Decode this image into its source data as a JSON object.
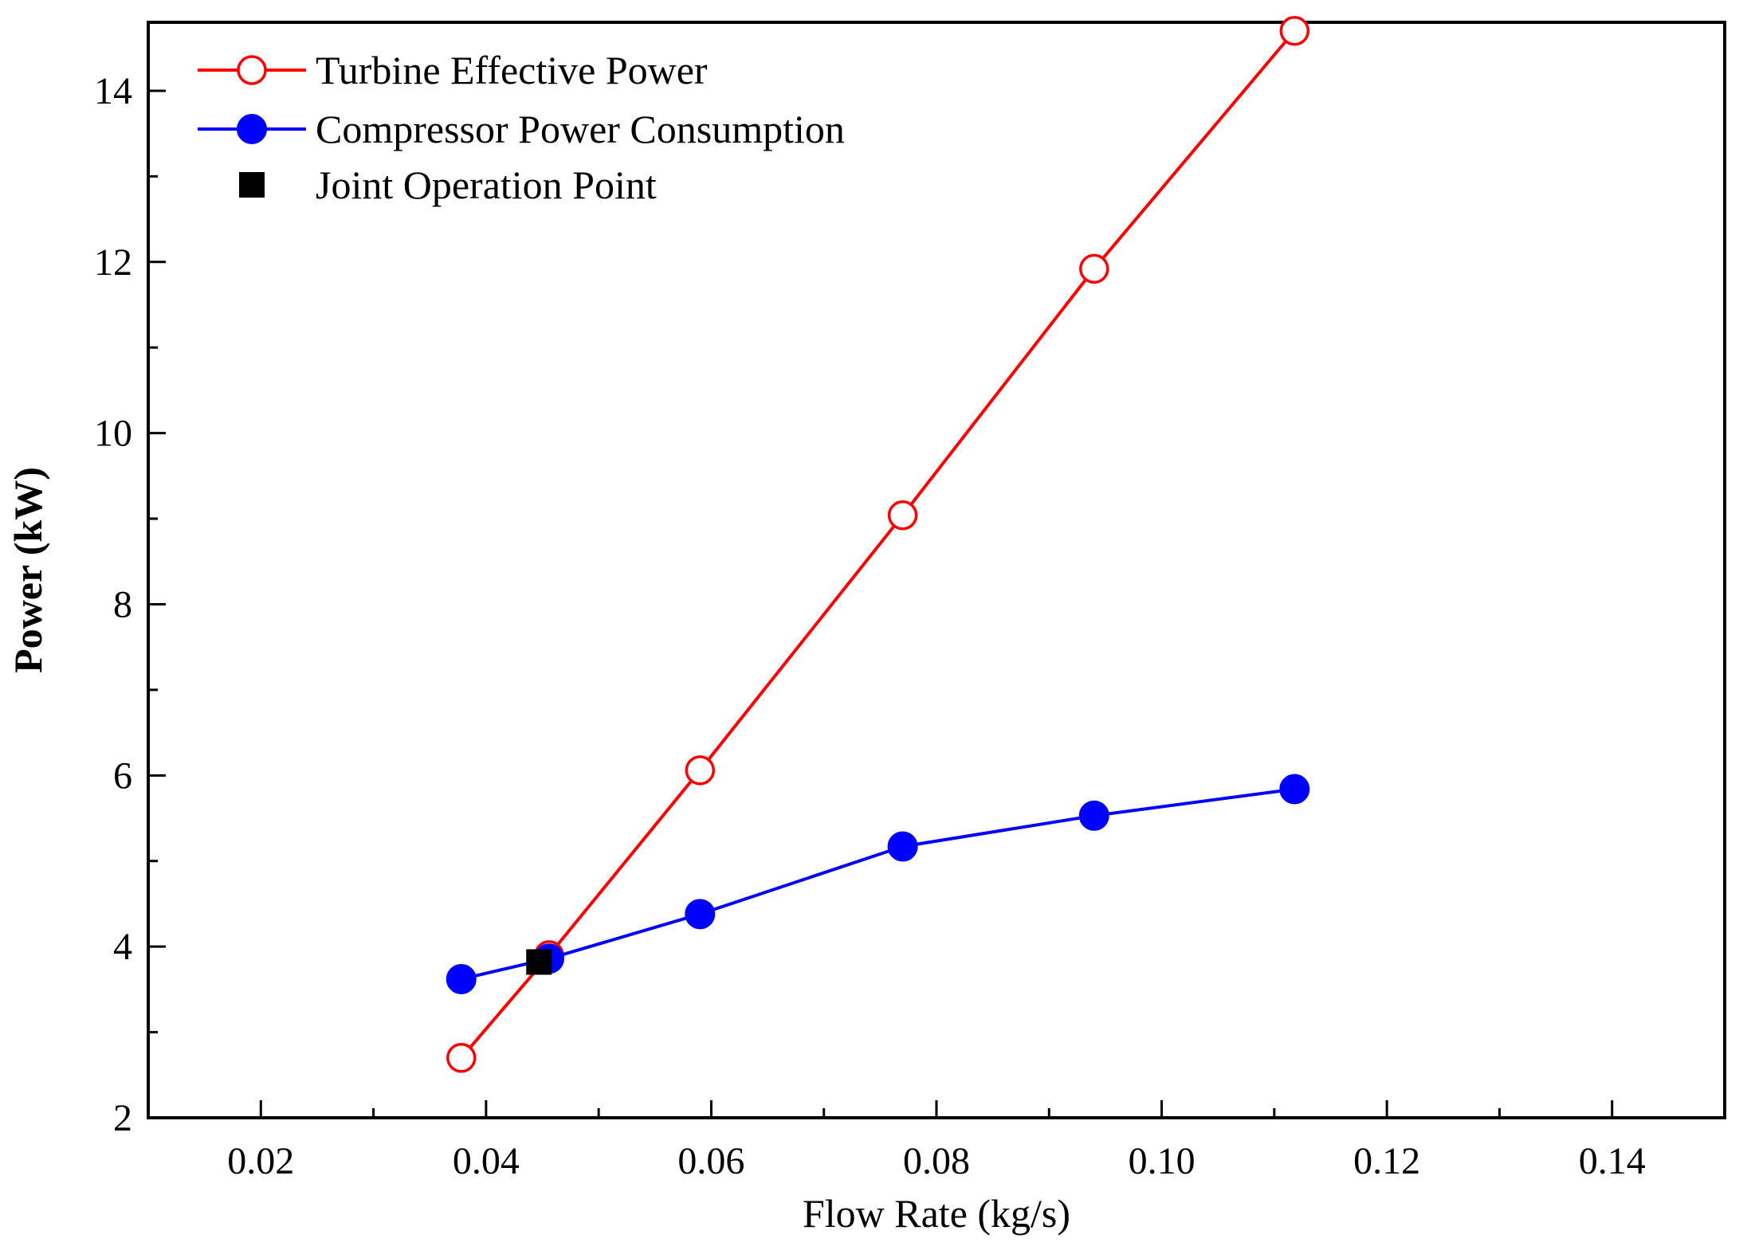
{
  "chart_data": {
    "type": "line",
    "title": "",
    "xlabel": "Flow Rate (kg/s)",
    "ylabel": "Power (kW)",
    "xlim": [
      0.01,
      0.15
    ],
    "ylim": [
      2,
      14.8
    ],
    "x_ticks": [
      0.02,
      0.04,
      0.06,
      0.08,
      0.1,
      0.12,
      0.14
    ],
    "x_tick_labels": [
      "0.02",
      "0.04",
      "0.06",
      "0.08",
      "0.10",
      "0.12",
      "0.14"
    ],
    "y_ticks": [
      2,
      4,
      6,
      8,
      10,
      12,
      14
    ],
    "y_tick_labels": [
      "2",
      "4",
      "6",
      "8",
      "10",
      "12",
      "14"
    ],
    "grid": false,
    "legend_position": "top-left",
    "series": [
      {
        "name": "Turbine Effective Power",
        "color": "#ff0000",
        "marker": "open-circle",
        "x": [
          0.0378,
          0.0456,
          0.059,
          0.077,
          0.094,
          0.1118
        ],
        "y": [
          2.7,
          3.9,
          6.06,
          9.04,
          11.92,
          14.7
        ]
      },
      {
        "name": "Compressor Power Consumption",
        "color": "#0000ff",
        "marker": "filled-circle",
        "x": [
          0.0378,
          0.0456,
          0.059,
          0.077,
          0.094,
          0.1118
        ],
        "y": [
          3.62,
          3.86,
          4.38,
          5.17,
          5.53,
          5.84
        ]
      },
      {
        "name": "Joint Operation Point",
        "color": "#000000",
        "marker": "filled-square",
        "x": [
          0.0447
        ],
        "y": [
          3.82
        ]
      }
    ]
  }
}
